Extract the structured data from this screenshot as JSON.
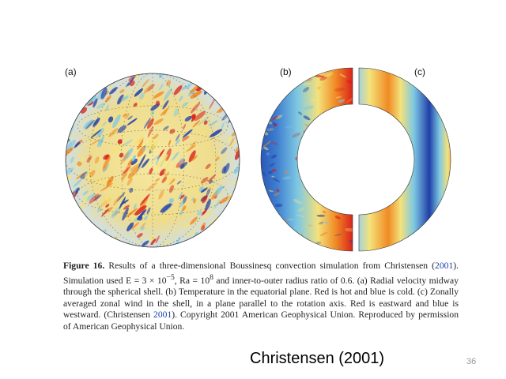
{
  "figure": {
    "panels": [
      {
        "label": "(a)",
        "description_icon": "sphere-radial-velocity"
      },
      {
        "label": "(b)",
        "description_icon": "half-shell-temperature"
      },
      {
        "label": "(c)",
        "description_icon": "half-shell-zonal-wind"
      }
    ],
    "colors": {
      "hot_red": "#d7191c",
      "warm_orange": "#f08a24",
      "neutral_yellow": "#f4e27a",
      "cool_cyan": "#7ec8e3",
      "cold_blue": "#1f3fa8"
    }
  },
  "caption": {
    "figure_label": "Figure 16.",
    "text_1": " Results of a three-dimensional Boussinesq convection simulation from Christensen (",
    "cite_1": "2001",
    "text_2": "). Simulation used E = 3 × 10",
    "exp_1": "−5",
    "text_3": ", Ra = 10",
    "exp_2": "8",
    "text_4": " and inner-to-outer radius ratio of 0.6. (a) Radial velocity midway through the spherical shell. (b) Temperature in the equatorial plane. Red is hot and blue is cold. (c) Zonally averaged zonal wind in the shell, in a plane parallel to the rotation axis. Red is eastward and blue is westward. (Christensen ",
    "cite_2": "2001",
    "text_5": "). Copyright 2001 American Geophysical Union. Reproduced by permission of American Geophysical Union."
  },
  "footer": {
    "credit": "Christensen (2001)",
    "page_number": "36"
  }
}
